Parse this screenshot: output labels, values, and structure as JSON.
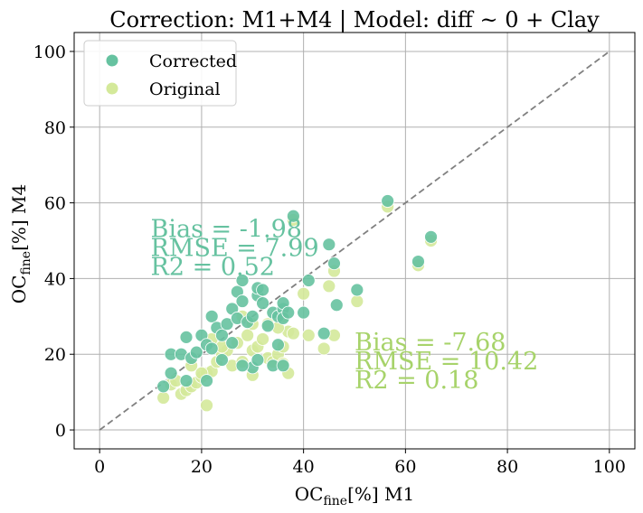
{
  "chart_data": {
    "type": "scatter",
    "title": "Correction: M1+M4 | Model: diff ~ 0 + Clay",
    "xlabel": {
      "base": "OC",
      "sub": "fine",
      "rest": "[%] M1"
    },
    "ylabel": {
      "base": "OC",
      "sub": "fine",
      "rest": "[%] M4"
    },
    "xlim": [
      -5,
      105
    ],
    "ylim": [
      -5,
      105
    ],
    "xticks": [
      0,
      20,
      40,
      60,
      80,
      100
    ],
    "yticks": [
      0,
      20,
      40,
      60,
      80,
      100
    ],
    "xtick_labels": [
      "0",
      "20",
      "40",
      "60",
      "80",
      "100"
    ],
    "ytick_labels": [
      "0",
      "20",
      "40",
      "60",
      "80",
      "100"
    ],
    "grid": true,
    "legend_position": "top-left",
    "reference_line": {
      "style": "dashed",
      "from": [
        0,
        0
      ],
      "to": [
        100,
        100
      ],
      "color": "#808080"
    },
    "series": [
      {
        "name": "Original",
        "color": "#d4e99a",
        "points": [
          [
            12.5,
            8.5
          ],
          [
            14,
            12
          ],
          [
            15,
            13
          ],
          [
            16,
            9.5
          ],
          [
            17,
            10.5
          ],
          [
            18,
            11.5
          ],
          [
            19,
            12.5
          ],
          [
            20,
            14
          ],
          [
            21,
            6.5
          ],
          [
            21,
            15
          ],
          [
            22,
            15.5
          ],
          [
            23,
            18
          ],
          [
            24,
            20
          ],
          [
            25,
            21
          ],
          [
            26,
            17
          ],
          [
            27,
            23
          ],
          [
            28,
            18
          ],
          [
            29,
            25
          ],
          [
            30,
            14.5
          ],
          [
            30,
            21
          ],
          [
            31,
            22
          ],
          [
            32,
            24
          ],
          [
            33,
            19
          ],
          [
            34,
            18
          ],
          [
            35,
            20
          ],
          [
            36,
            22
          ],
          [
            36,
            17.5
          ],
          [
            37,
            15
          ],
          [
            37,
            26
          ],
          [
            38,
            25.5
          ],
          [
            33,
            28
          ],
          [
            35,
            27
          ],
          [
            30,
            28
          ],
          [
            28,
            30
          ],
          [
            36,
            30
          ],
          [
            38,
            55.5
          ],
          [
            40,
            36
          ],
          [
            41,
            25
          ],
          [
            44,
            21.5
          ],
          [
            45,
            38
          ],
          [
            46,
            25
          ],
          [
            46,
            42
          ],
          [
            50.5,
            34
          ],
          [
            56.5,
            59
          ],
          [
            62.5,
            43.5
          ],
          [
            65,
            50
          ],
          [
            18,
            17
          ],
          [
            20,
            15
          ],
          [
            24,
            22
          ],
          [
            22,
            24
          ]
        ]
      },
      {
        "name": "Corrected",
        "color": "#66c2a0",
        "points": [
          [
            12.5,
            11.5
          ],
          [
            14,
            15
          ],
          [
            14,
            20
          ],
          [
            16,
            20
          ],
          [
            17,
            24.5
          ],
          [
            17,
            13
          ],
          [
            18,
            19
          ],
          [
            19,
            20.5
          ],
          [
            20,
            25
          ],
          [
            21,
            22.5
          ],
          [
            21,
            13
          ],
          [
            22,
            30
          ],
          [
            23,
            27
          ],
          [
            24,
            25
          ],
          [
            25,
            28
          ],
          [
            26,
            32
          ],
          [
            27,
            36.5
          ],
          [
            27,
            29.5
          ],
          [
            28,
            34
          ],
          [
            28,
            39.5
          ],
          [
            29,
            28.5
          ],
          [
            30,
            30
          ],
          [
            31,
            35.5
          ],
          [
            31,
            37.5
          ],
          [
            32,
            37
          ],
          [
            32,
            33.5
          ],
          [
            33,
            27.5
          ],
          [
            34,
            31
          ],
          [
            35,
            30
          ],
          [
            35,
            22.5
          ],
          [
            36,
            32
          ],
          [
            36,
            29.5
          ],
          [
            36,
            33.5
          ],
          [
            37,
            31
          ],
          [
            38,
            56.5
          ],
          [
            40,
            31
          ],
          [
            41,
            39.5
          ],
          [
            44,
            25.5
          ],
          [
            45,
            49
          ],
          [
            46,
            44
          ],
          [
            46.5,
            33
          ],
          [
            50.5,
            37
          ],
          [
            56.5,
            60.5
          ],
          [
            62.5,
            44.5
          ],
          [
            65,
            51
          ],
          [
            30,
            16.5
          ],
          [
            34,
            17
          ],
          [
            28,
            17
          ],
          [
            22,
            21.5
          ],
          [
            24,
            18.5
          ],
          [
            26,
            23
          ],
          [
            31,
            18.5
          ],
          [
            36,
            17
          ]
        ]
      }
    ],
    "annotations": [
      {
        "series": "Corrected",
        "color": "#66c2a0",
        "lines": [
          "Bias = -1.98",
          "RMSE = 7.99",
          "R2 = 0.52"
        ],
        "x": 10,
        "y": 51
      },
      {
        "series": "Original",
        "color": "#a7d36a",
        "lines": [
          "Bias = -7.68",
          "RMSE = 10.42",
          "R2 = 0.18"
        ],
        "x": 50,
        "y": 21
      }
    ]
  },
  "legend": {
    "items": [
      {
        "label": "Corrected",
        "color": "#66c2a0"
      },
      {
        "label": "Original",
        "color": "#d4e99a"
      }
    ]
  }
}
